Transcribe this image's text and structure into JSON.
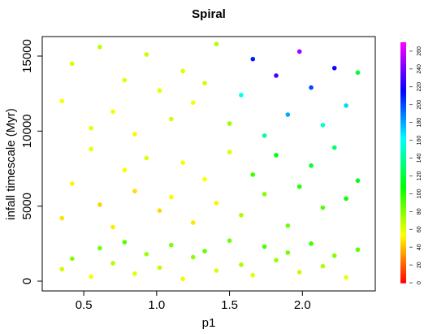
{
  "chart_data": {
    "type": "scatter",
    "title": "Spiral",
    "x_label": "p1",
    "y_label": "infall timescale (Myr)",
    "xlim": [
      0.215,
      2.5
    ],
    "ylim": [
      -650,
      16300
    ],
    "xticks": [
      0.5,
      {
        "value": 1,
        "label": "1.0"
      },
      1.5,
      {
        "value": 2,
        "label": "2.0"
      }
    ],
    "yticks": [
      0,
      5000,
      10000,
      15000
    ],
    "x": [
      0.35,
      0.42,
      0.55,
      0.61,
      0.7,
      0.78,
      0.85,
      0.93,
      1.02,
      1.1,
      1.18,
      1.25,
      1.33,
      1.41,
      1.5,
      1.58,
      1.66,
      1.74,
      1.82,
      1.9,
      1.98,
      2.06,
      2.14,
      2.22,
      2.3,
      2.38,
      0.35,
      0.42,
      0.55,
      0.61,
      0.7,
      0.78,
      0.85,
      0.93,
      1.02,
      1.1,
      1.18,
      1.25,
      1.33,
      1.41,
      1.5,
      1.58,
      1.66,
      1.74,
      1.82,
      1.9,
      1.98,
      2.06,
      2.14,
      2.22,
      2.3,
      2.38,
      0.35,
      0.42,
      0.55,
      0.61,
      0.7,
      0.78,
      0.85,
      0.93,
      1.02,
      1.1,
      1.18,
      1.25,
      1.33,
      1.41,
      1.5,
      1.58,
      1.66,
      1.74,
      1.82,
      1.9,
      1.98,
      2.06,
      2.14,
      2.22,
      2.3,
      2.38
    ],
    "y": [
      800,
      1500,
      300,
      2200,
      1200,
      2600,
      500,
      1800,
      900,
      2400,
      150,
      1600,
      2000,
      700,
      2700,
      1100,
      400,
      2300,
      1400,
      1900,
      600,
      2500,
      1000,
      1700,
      250,
      2100,
      4200,
      6500,
      8800,
      5100,
      3600,
      7400,
      6000,
      8200,
      4700,
      5600,
      7900,
      3900,
      6800,
      5200,
      8600,
      4400,
      7100,
      5800,
      8400,
      3700,
      6300,
      7700,
      4900,
      8900,
      5500,
      6700,
      12000,
      14500,
      10200,
      15600,
      11300,
      13400,
      9800,
      15100,
      12700,
      10800,
      14000,
      11900,
      13200,
      15800,
      10500,
      12400,
      14800,
      9700,
      13700,
      11100,
      15300,
      12900,
      10400,
      14200,
      11700,
      13900
    ],
    "color_values": [
      65,
      80,
      55,
      85,
      70,
      90,
      60,
      75,
      68,
      82,
      58,
      78,
      88,
      62,
      85,
      72,
      60,
      92,
      76,
      84,
      66,
      95,
      70,
      80,
      58,
      88,
      48,
      52,
      58,
      45,
      50,
      55,
      47,
      60,
      46,
      53,
      57,
      49,
      54,
      51,
      62,
      72,
      95,
      80,
      110,
      85,
      100,
      120,
      90,
      130,
      105,
      115,
      55,
      62,
      58,
      68,
      56,
      60,
      52,
      66,
      59,
      63,
      61,
      57,
      64,
      70,
      75,
      160,
      210,
      140,
      230,
      180,
      250,
      200,
      150,
      220,
      170,
      120
    ],
    "colorscale": [
      "#ff0000",
      "#ffff00",
      "#00ff00",
      "#00ffff",
      "#0000ff",
      "#ff00ff"
    ],
    "colorbar_lim": [
      0,
      270
    ],
    "colorbar_ticks": [
      0,
      20,
      40,
      60,
      80,
      100,
      120,
      140,
      160,
      180,
      200,
      220,
      240,
      260
    ]
  }
}
